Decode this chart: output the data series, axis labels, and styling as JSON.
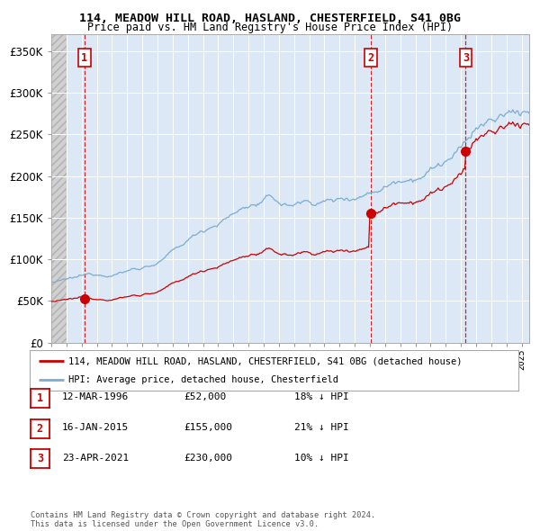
{
  "title1": "114, MEADOW HILL ROAD, HASLAND, CHESTERFIELD, S41 0BG",
  "title2": "Price paid vs. HM Land Registry's House Price Index (HPI)",
  "xmin": 1994.0,
  "xmax": 2025.5,
  "ymin": 0,
  "ymax": 370000,
  "yticks": [
    0,
    50000,
    100000,
    150000,
    200000,
    250000,
    300000,
    350000
  ],
  "sale1_date": 1996.19,
  "sale1_price": 52000,
  "sale2_date": 2015.04,
  "sale2_price": 155000,
  "sale3_date": 2021.31,
  "sale3_price": 230000,
  "legend_line1": "114, MEADOW HILL ROAD, HASLAND, CHESTERFIELD, S41 0BG (detached house)",
  "legend_line2": "HPI: Average price, detached house, Chesterfield",
  "table_rows": [
    {
      "num": "1",
      "date": "12-MAR-1996",
      "price": "£52,000",
      "hpi": "18% ↓ HPI"
    },
    {
      "num": "2",
      "date": "16-JAN-2015",
      "price": "£155,000",
      "hpi": "21% ↓ HPI"
    },
    {
      "num": "3",
      "date": "23-APR-2021",
      "price": "£230,000",
      "hpi": "10% ↓ HPI"
    }
  ],
  "footer": "Contains HM Land Registry data © Crown copyright and database right 2024.\nThis data is licensed under the Open Government Licence v3.0.",
  "sale_color": "#cc0000",
  "hpi_color": "#7aadd4",
  "plot_bg": "#dce8f5",
  "hatch_bg": "#d8d8d8"
}
